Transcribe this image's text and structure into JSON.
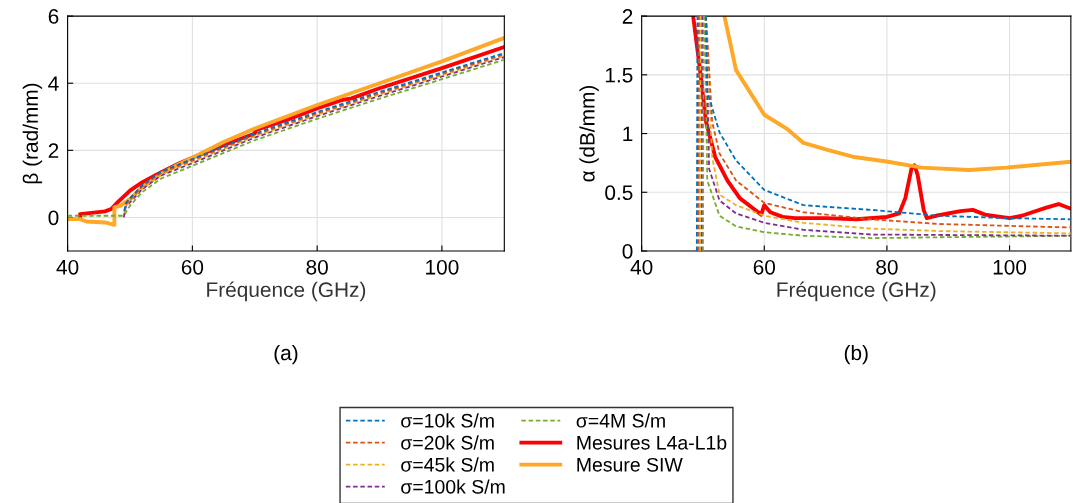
{
  "chart_data": [
    {
      "type": "line",
      "xlabel": "Fréquence (GHz)",
      "ylabel": "β (rad/mm)",
      "annotations": [
        "(a)"
      ],
      "xlim": [
        40,
        110
      ],
      "ylim": [
        -1,
        6
      ],
      "xticks": [
        40,
        60,
        80,
        100
      ],
      "yticks": [
        0,
        2,
        4,
        6
      ],
      "grid": true,
      "legend": "bottom",
      "series": [
        {
          "name": "σ=10k S/m",
          "color": "#0072bd",
          "line_style": "dashed",
          "x": [
            49.1,
            49.3,
            50,
            52,
            55,
            60,
            70,
            80,
            90,
            100,
            110
          ],
          "values": [
            0.2,
            0.42,
            0.57,
            0.97,
            1.37,
            1.74,
            2.5,
            3.14,
            3.74,
            4.32,
            4.9
          ]
        },
        {
          "name": "σ=20k S/m",
          "color": "#d95319",
          "line_style": "dashed",
          "x": [
            49.1,
            49.3,
            50,
            52,
            55,
            60,
            70,
            80,
            90,
            100,
            110
          ],
          "values": [
            0.17,
            0.38,
            0.53,
            0.93,
            1.33,
            1.7,
            2.46,
            3.1,
            3.7,
            4.28,
            4.86
          ]
        },
        {
          "name": "σ=45k S/m",
          "color": "#edb120",
          "line_style": "dashed",
          "x": [
            49.1,
            49.3,
            50,
            52,
            55,
            60,
            70,
            80,
            90,
            100,
            110
          ],
          "values": [
            0.14,
            0.34,
            0.49,
            0.89,
            1.29,
            1.66,
            2.42,
            3.06,
            3.66,
            4.24,
            4.82
          ]
        },
        {
          "name": "σ=100k S/m",
          "color": "#7e2f8e",
          "line_style": "dashed",
          "x": [
            49,
            49.3,
            50,
            52,
            55,
            60,
            70,
            80,
            90,
            100,
            110
          ],
          "values": [
            0.0,
            0.3,
            0.45,
            0.85,
            1.25,
            1.62,
            2.38,
            3.02,
            3.62,
            4.2,
            4.78
          ]
        },
        {
          "name": "σ=4M S/m",
          "color": "#77ac30",
          "line_style": "dashed",
          "x": [
            40,
            49,
            50,
            52,
            55,
            60,
            70,
            80,
            90,
            100,
            110
          ],
          "values": [
            0.05,
            0.05,
            0.35,
            0.76,
            1.16,
            1.54,
            2.3,
            2.94,
            3.54,
            4.12,
            4.7
          ]
        },
        {
          "name": "Mesures L4a-L1b",
          "color": "#ff0000",
          "line_style": "solid",
          "x": [
            42,
            42,
            46,
            47,
            48,
            50,
            52,
            55,
            58,
            60,
            65,
            70,
            70.1,
            75,
            80,
            84,
            85.5,
            90,
            100,
            110
          ],
          "values": [
            0,
            0.1,
            0.18,
            0.25,
            0.45,
            0.8,
            1.05,
            1.35,
            1.62,
            1.78,
            2.15,
            2.5,
            2.6,
            2.9,
            3.25,
            3.5,
            3.55,
            3.85,
            4.45,
            5.08
          ]
        },
        {
          "name": "Mesure SIW",
          "color": "#ffa726",
          "line_style": "solid",
          "x": [
            40,
            42,
            43,
            46,
            47.5,
            47.5,
            48.5,
            50,
            52,
            55,
            58,
            60,
            65,
            70,
            75,
            80,
            90,
            100,
            110
          ],
          "values": [
            -0.05,
            -0.05,
            -0.12,
            -0.15,
            -0.22,
            0.3,
            0.35,
            0.55,
            0.9,
            1.3,
            1.6,
            1.78,
            2.25,
            2.65,
            3.0,
            3.35,
            4.0,
            4.65,
            5.35
          ]
        }
      ]
    },
    {
      "type": "line",
      "xlabel": "Fréquence (GHz)",
      "ylabel": "α (dB/mm)",
      "annotations": [
        "(b)"
      ],
      "xlim": [
        40,
        110
      ],
      "ylim": [
        0,
        2
      ],
      "xticks": [
        40,
        60,
        80,
        100
      ],
      "yticks": [
        0,
        {
          "value": 0.5,
          "label": "0.5"
        },
        1,
        {
          "value": 1.5,
          "label": "1.5"
        },
        2
      ],
      "grid": true,
      "series": [
        {
          "color": "#0072bd",
          "line_style": "dashed",
          "x": [
            49.0,
            49.1,
            50,
            50.5,
            50.7,
            52.7,
            55.4,
            60,
            66.4,
            77.5,
            88.5,
            99.5,
            110
          ],
          "values": [
            0,
            2,
            null,
            2,
            1.36,
            1.01,
            0.77,
            0.52,
            0.39,
            0.35,
            0.3,
            0.28,
            0.27
          ]
        },
        {
          "color": "#d95319",
          "line_style": "dashed",
          "x": [
            49.25,
            49.35,
            50,
            50.5,
            51.5,
            52.7,
            55.4,
            60,
            66.4,
            77.5,
            88.5,
            110
          ],
          "values": [
            0,
            2,
            null,
            2,
            1.1,
            0.83,
            0.6,
            0.41,
            0.33,
            0.27,
            0.23,
            0.2
          ]
        },
        {
          "color": "#edb120",
          "line_style": "dashed",
          "x": [
            49.5,
            49.6,
            50,
            50.5,
            51.5,
            52.7,
            55.4,
            60,
            66.4,
            77.5,
            88.5,
            110
          ],
          "values": [
            0,
            2,
            null,
            2,
            0.8,
            0.48,
            0.39,
            0.3,
            0.24,
            0.19,
            0.17,
            0.15
          ]
        },
        {
          "color": "#7e2f8e",
          "line_style": "dashed",
          "x": [
            49.75,
            49.85,
            50,
            50.5,
            51,
            52.7,
            55.4,
            60,
            66.4,
            77.5,
            110
          ],
          "values": [
            0,
            2,
            null,
            2,
            0.7,
            0.43,
            0.32,
            0.24,
            0.18,
            0.14,
            0.13
          ]
        },
        {
          "color": "#77ac30",
          "line_style": "dashed",
          "x": [
            50.0,
            50.1,
            50.2,
            50.3,
            50.7,
            52.7,
            55.4,
            60,
            66.4,
            77.5,
            110
          ],
          "values": [
            0,
            2,
            null,
            2,
            0.6,
            0.3,
            0.21,
            0.16,
            0.13,
            0.11,
            0.13
          ]
        },
        {
          "color": "#ff0000",
          "line_style": "solid",
          "x": [
            48.4,
            49.5,
            50.5,
            52,
            54,
            56,
            59,
            59.5,
            60,
            61,
            63,
            65,
            70,
            75,
            80,
            82,
            83,
            84,
            84.5,
            85,
            86,
            86.5,
            88,
            92,
            94,
            96,
            100,
            102,
            106,
            108,
            110
          ],
          "values": [
            2,
            1.55,
            1.1,
            0.8,
            0.6,
            0.45,
            0.33,
            0.31,
            0.39,
            0.33,
            0.29,
            0.28,
            0.28,
            0.27,
            0.29,
            0.32,
            0.45,
            0.7,
            0.73,
            0.65,
            0.35,
            0.28,
            0.3,
            0.34,
            0.35,
            0.31,
            0.28,
            0.3,
            0.37,
            0.4,
            0.36
          ]
        },
        {
          "color": "#ffa726",
          "line_style": "solid",
          "x": [
            53.5,
            55.4,
            60,
            63.7,
            66.4,
            70.3,
            74.7,
            80.2,
            85.7,
            93.4,
            99.5,
            110
          ],
          "values": [
            2.0,
            1.54,
            1.16,
            1.04,
            0.92,
            0.86,
            0.8,
            0.76,
            0.71,
            0.69,
            0.71,
            0.76
          ]
        }
      ]
    }
  ]
}
